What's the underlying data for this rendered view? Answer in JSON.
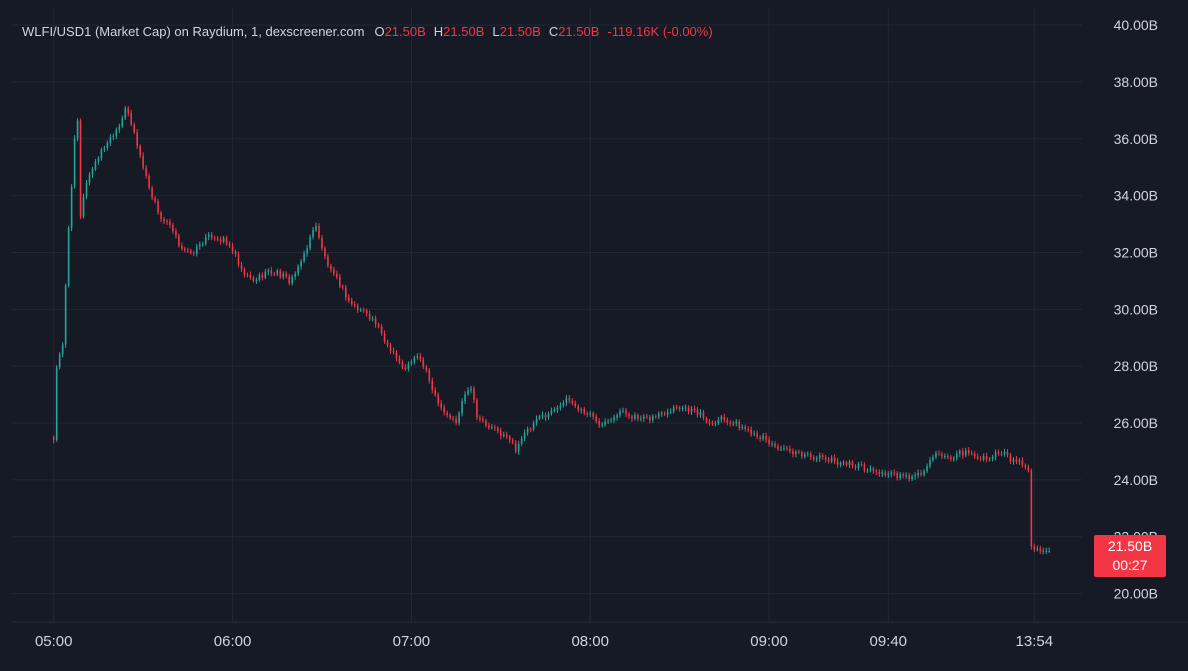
{
  "header": {
    "symbol": "WLFI/USD1 (Market Cap) on Raydium, 1, dexscreener.com",
    "o_label": "O",
    "o_value": "21.50B",
    "h_label": "H",
    "h_value": "21.50B",
    "l_label": "L",
    "l_value": "21.50B",
    "c_label": "C",
    "c_value": "21.50B",
    "change": "-119.16K (-0.00%)"
  },
  "colors": {
    "background": "#161a25",
    "grid": "#232734",
    "up": "#26a69a",
    "down": "#f23645",
    "text": "#d1d4dc"
  },
  "price_tag": {
    "value": "21.50B",
    "countdown": "00:27"
  },
  "chart_data": {
    "type": "candlestick",
    "title": "",
    "xlabel": "",
    "ylabel": "",
    "ylim": [
      19.0,
      40.6
    ],
    "y_unit": "B",
    "y_ticks": [
      {
        "value": 40,
        "label": "40.00B"
      },
      {
        "value": 38,
        "label": "38.00B"
      },
      {
        "value": 36,
        "label": "36.00B"
      },
      {
        "value": 34,
        "label": "34.00B"
      },
      {
        "value": 32,
        "label": "32.00B"
      },
      {
        "value": 30,
        "label": "30.00B"
      },
      {
        "value": 28,
        "label": "28.00B"
      },
      {
        "value": 26,
        "label": "26.00B"
      },
      {
        "value": 24,
        "label": "24.00B"
      },
      {
        "value": 22,
        "label": "22.00B"
      },
      {
        "value": 20,
        "label": "20.00B"
      }
    ],
    "x_ticks": [
      {
        "index": 0,
        "label": "05:00"
      },
      {
        "index": 60,
        "label": "06:00"
      },
      {
        "index": 120,
        "label": "07:00"
      },
      {
        "index": 180,
        "label": "08:00"
      },
      {
        "index": 240,
        "label": "09:00"
      },
      {
        "index": 280,
        "label": "09:40"
      },
      {
        "index": 329,
        "label": "13:54"
      }
    ],
    "x_range": [
      -14,
      345
    ],
    "last_value": 21.5,
    "grid": true,
    "legend": "none",
    "keypoints": [
      [
        0,
        25.4
      ],
      [
        1,
        28.0
      ],
      [
        3,
        28.7
      ],
      [
        5,
        32.9
      ],
      [
        7,
        35.9
      ],
      [
        8,
        36.6
      ],
      [
        9,
        33.2
      ],
      [
        10,
        34.0
      ],
      [
        11,
        34.5
      ],
      [
        14,
        35.2
      ],
      [
        18,
        35.9
      ],
      [
        22,
        36.5
      ],
      [
        24,
        37.1
      ],
      [
        25,
        36.8
      ],
      [
        27,
        36.2
      ],
      [
        30,
        35.0
      ],
      [
        33,
        34.0
      ],
      [
        36,
        33.2
      ],
      [
        39,
        32.9
      ],
      [
        42,
        32.3
      ],
      [
        46,
        31.9
      ],
      [
        50,
        32.4
      ],
      [
        53,
        32.6
      ],
      [
        57,
        32.4
      ],
      [
        60,
        32.1
      ],
      [
        63,
        31.3
      ],
      [
        67,
        31.0
      ],
      [
        71,
        31.3
      ],
      [
        75,
        31.3
      ],
      [
        79,
        31.0
      ],
      [
        82,
        31.4
      ],
      [
        86,
        32.5
      ],
      [
        88,
        33.0
      ],
      [
        90,
        32.1
      ],
      [
        93,
        31.3
      ],
      [
        96,
        30.9
      ],
      [
        99,
        30.3
      ],
      [
        102,
        30.0
      ],
      [
        105,
        29.9
      ],
      [
        108,
        29.5
      ],
      [
        111,
        28.9
      ],
      [
        114,
        28.5
      ],
      [
        117,
        27.9
      ],
      [
        120,
        28.1
      ],
      [
        122,
        28.4
      ],
      [
        124,
        28.0
      ],
      [
        126,
        27.5
      ],
      [
        128,
        27.0
      ],
      [
        131,
        26.4
      ],
      [
        135,
        26.0
      ],
      [
        138,
        27.1
      ],
      [
        140,
        27.3
      ],
      [
        142,
        26.3
      ],
      [
        145,
        25.9
      ],
      [
        149,
        25.7
      ],
      [
        153,
        25.4
      ],
      [
        155,
        25.1
      ],
      [
        157,
        25.5
      ],
      [
        160,
        25.8
      ],
      [
        163,
        26.2
      ],
      [
        167,
        26.4
      ],
      [
        170,
        26.7
      ],
      [
        173,
        26.8
      ],
      [
        176,
        26.5
      ],
      [
        180,
        26.3
      ],
      [
        183,
        26.0
      ],
      [
        187,
        26.2
      ],
      [
        190,
        26.4
      ],
      [
        193,
        26.3
      ],
      [
        197,
        26.1
      ],
      [
        201,
        26.2
      ],
      [
        205,
        26.4
      ],
      [
        209,
        26.6
      ],
      [
        213,
        26.5
      ],
      [
        217,
        26.3
      ],
      [
        220,
        26.0
      ],
      [
        224,
        26.2
      ],
      [
        228,
        26.0
      ],
      [
        232,
        25.8
      ],
      [
        236,
        25.6
      ],
      [
        240,
        25.3
      ],
      [
        244,
        25.1
      ],
      [
        248,
        24.9
      ],
      [
        252,
        24.9
      ],
      [
        256,
        24.8
      ],
      [
        260,
        24.7
      ],
      [
        265,
        24.6
      ],
      [
        270,
        24.5
      ],
      [
        275,
        24.3
      ],
      [
        280,
        24.2
      ],
      [
        285,
        24.1
      ],
      [
        289,
        24.1
      ],
      [
        292,
        24.3
      ],
      [
        295,
        24.8
      ],
      [
        298,
        24.9
      ],
      [
        301,
        24.7
      ],
      [
        304,
        25.0
      ],
      [
        307,
        24.9
      ],
      [
        310,
        24.8
      ],
      [
        313,
        24.8
      ],
      [
        316,
        24.9
      ],
      [
        319,
        24.9
      ],
      [
        321,
        24.7
      ],
      [
        324,
        24.6
      ],
      [
        326,
        24.5
      ],
      [
        327,
        24.4
      ],
      [
        328,
        21.6
      ],
      [
        331,
        21.5
      ],
      [
        334,
        21.5
      ]
    ]
  }
}
